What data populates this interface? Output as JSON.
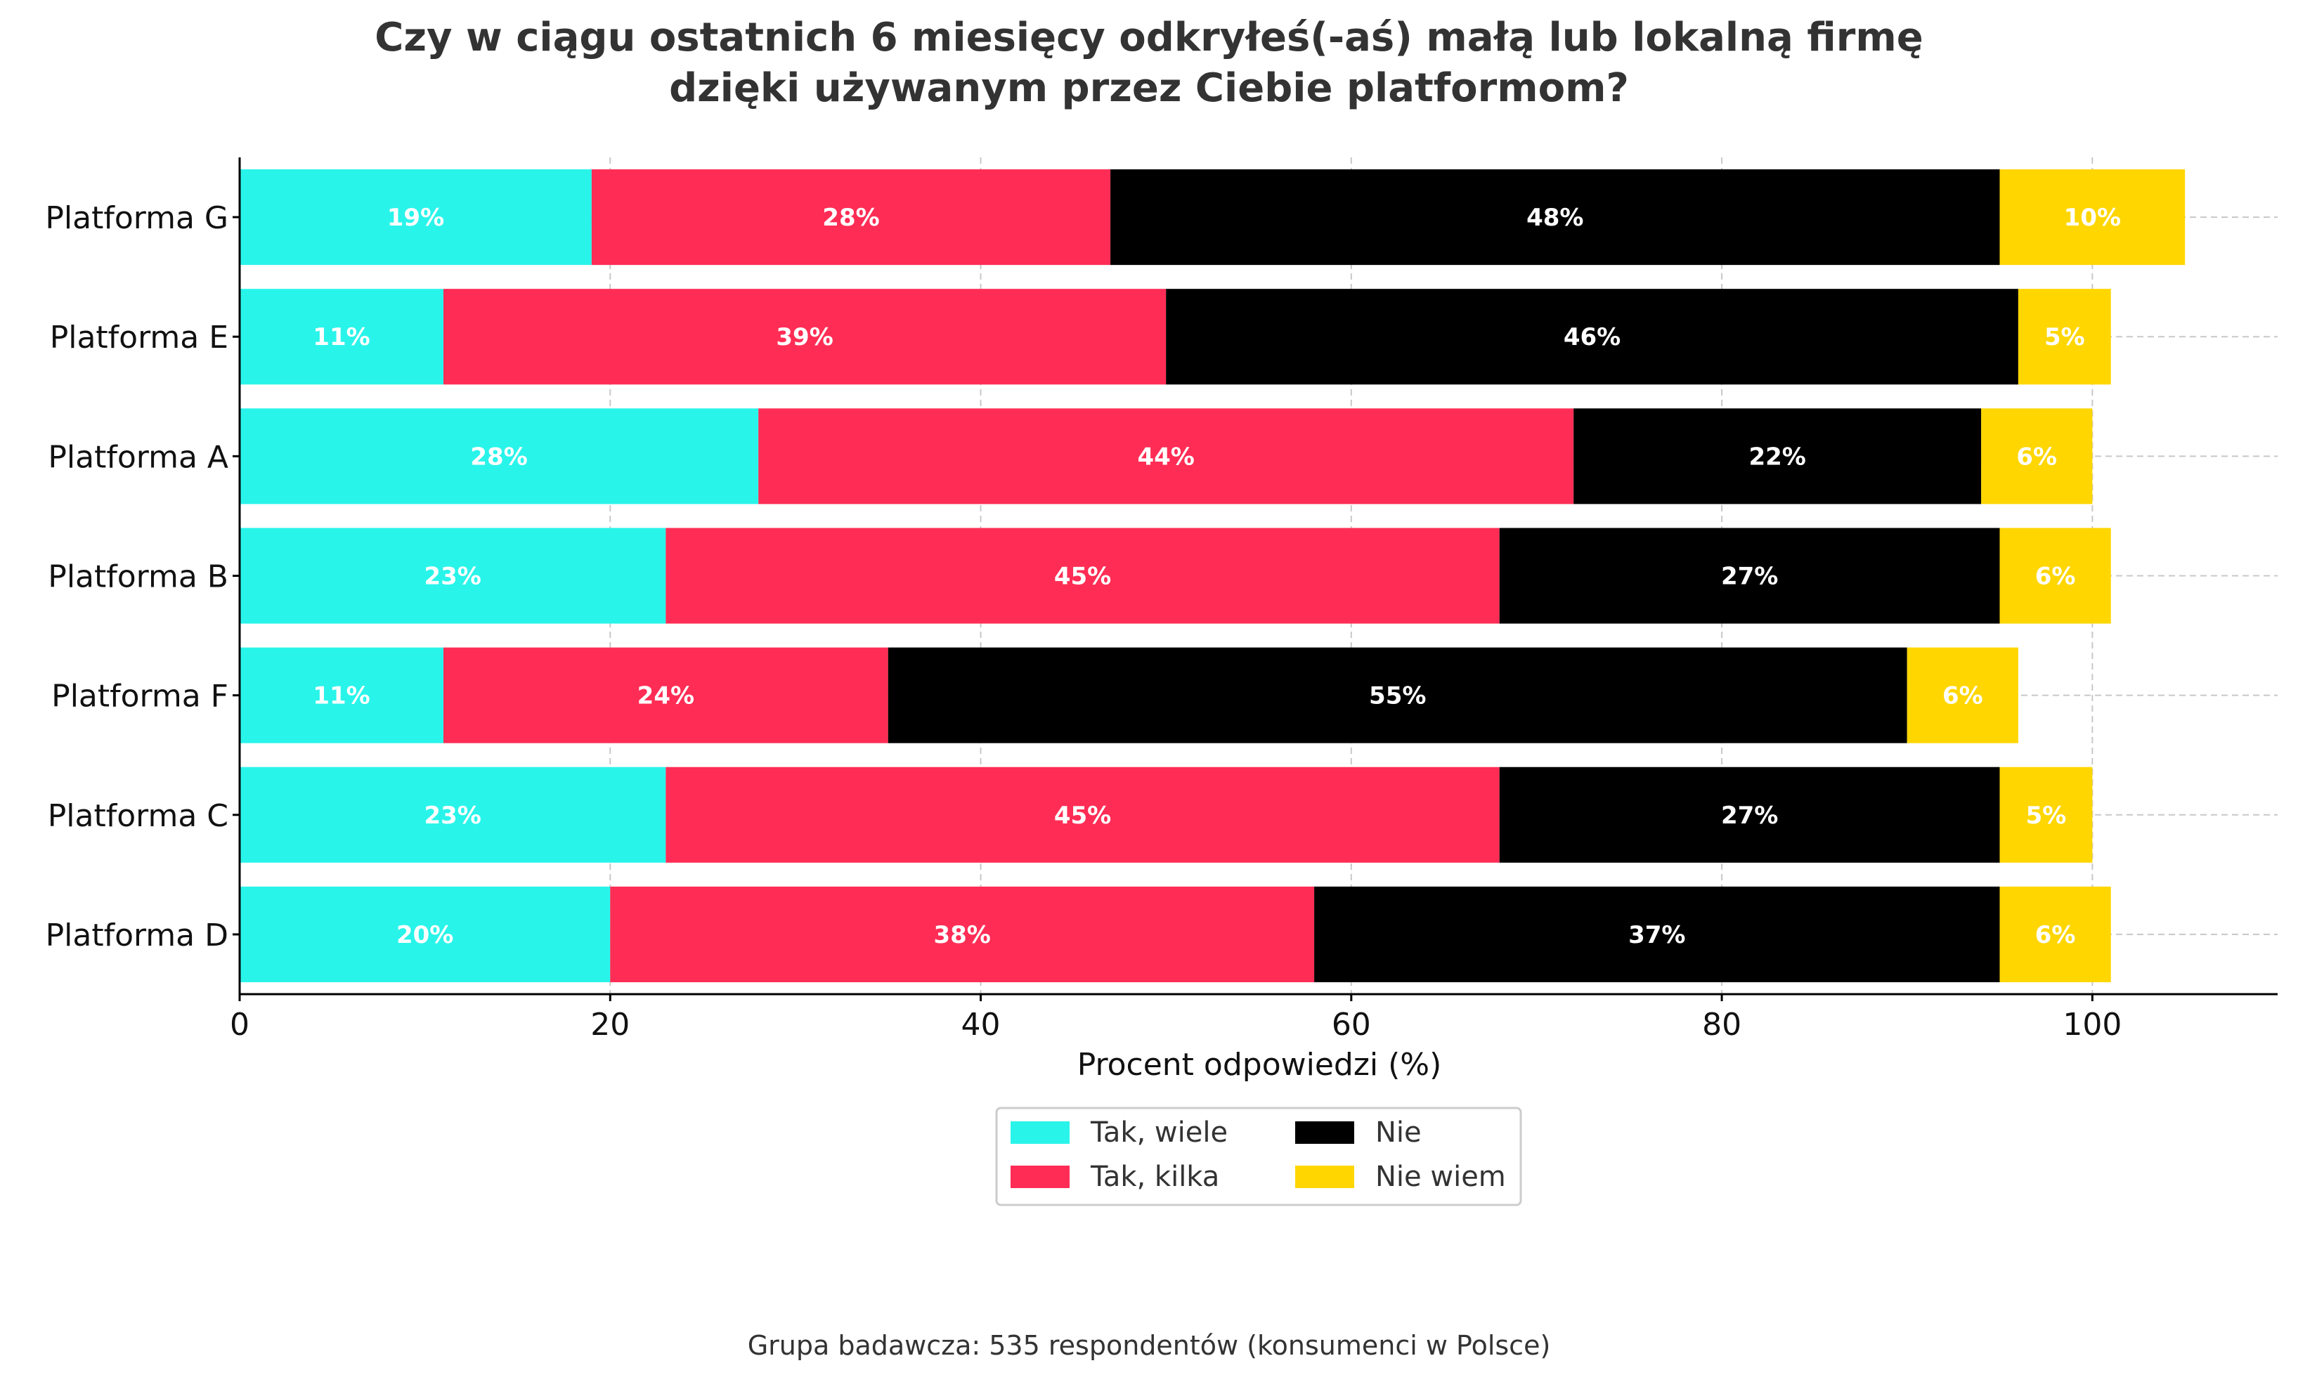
{
  "chart_data": {
    "type": "bar",
    "orientation": "horizontal",
    "stacked": true,
    "title_lines": [
      "Czy w ciągu ostatnich 6 miesięcy odkryłeś(-aś) małą lub lokalną firmę",
      "dzięki używanym przez Ciebie platformom?"
    ],
    "xlabel": "Procent odpowiedzi (%)",
    "ylabel": "",
    "xlim": [
      0,
      110
    ],
    "xticks": [
      0,
      20,
      40,
      60,
      80,
      100
    ],
    "grid": true,
    "legend_position": "bottom-center",
    "categories": [
      "Platforma G",
      "Platforma E",
      "Platforma A",
      "Platforma B",
      "Platforma F",
      "Platforma C",
      "Platforma D"
    ],
    "series": [
      {
        "name": "Tak, wiele",
        "color": "#29F4EA",
        "label_color": "#ffffff",
        "values": [
          19,
          11,
          28,
          23,
          11,
          23,
          20
        ]
      },
      {
        "name": "Tak, kilka",
        "color": "#FF2D55",
        "label_color": "#ffffff",
        "values": [
          28,
          39,
          44,
          45,
          24,
          45,
          38
        ]
      },
      {
        "name": "Nie",
        "color": "#000000",
        "label_color": "#ffffff",
        "values": [
          48,
          46,
          22,
          27,
          55,
          27,
          37
        ]
      },
      {
        "name": "Nie wiem",
        "color": "#FFD600",
        "label_color": "#ffffff",
        "values": [
          10,
          5,
          6,
          6,
          6,
          5,
          6
        ]
      }
    ],
    "caption": "Grupa badawcza: 535 respondentów (konsumenci w Polsce)"
  }
}
